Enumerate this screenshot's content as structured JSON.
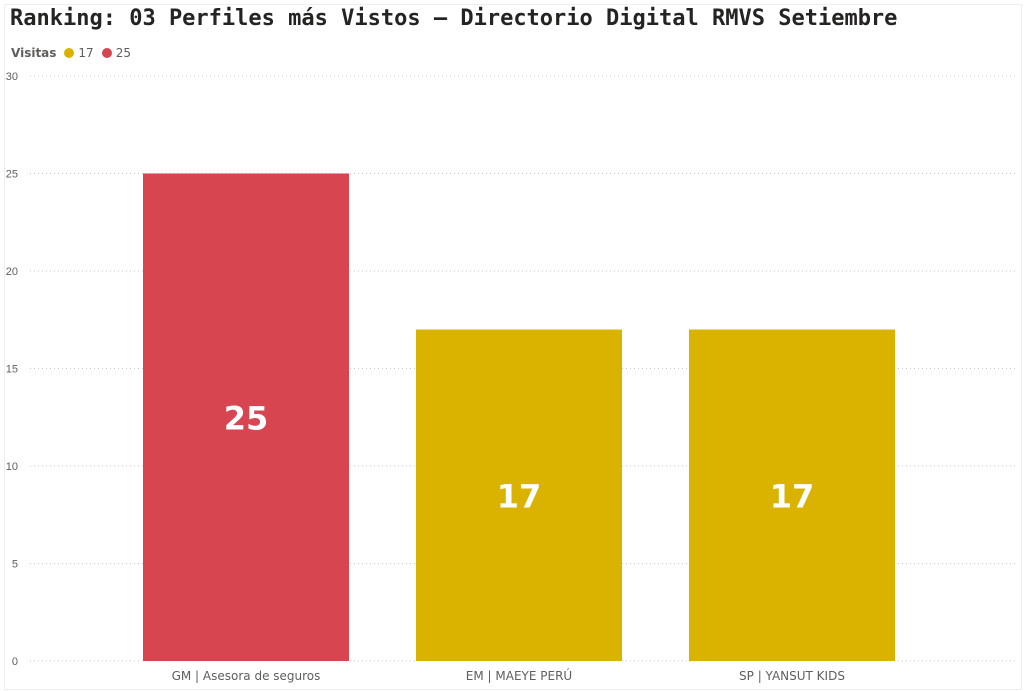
{
  "chart_data": {
    "type": "bar",
    "title": "Ranking: 03 Perfiles más Vistos – Directorio Digital RMVS Setiembre",
    "legend": {
      "title": "Visitas",
      "placement": "top-left",
      "entries": [
        {
          "label": "17",
          "color": "#D9B300"
        },
        {
          "label": "25",
          "color": "#D64550"
        }
      ]
    },
    "categories": [
      "GM | Asesora de seguros",
      "EM | MAEYE PERÚ",
      "SP | YANSUT KIDS"
    ],
    "values": [
      25,
      17,
      17
    ],
    "colors": [
      "#D64550",
      "#D9B300",
      "#D9B300"
    ],
    "data_labels": [
      "25",
      "17",
      "17"
    ],
    "yticks": [
      "0",
      "5",
      "10",
      "15",
      "20",
      "25",
      "30"
    ],
    "ylim": [
      0,
      30
    ],
    "grid": true
  }
}
